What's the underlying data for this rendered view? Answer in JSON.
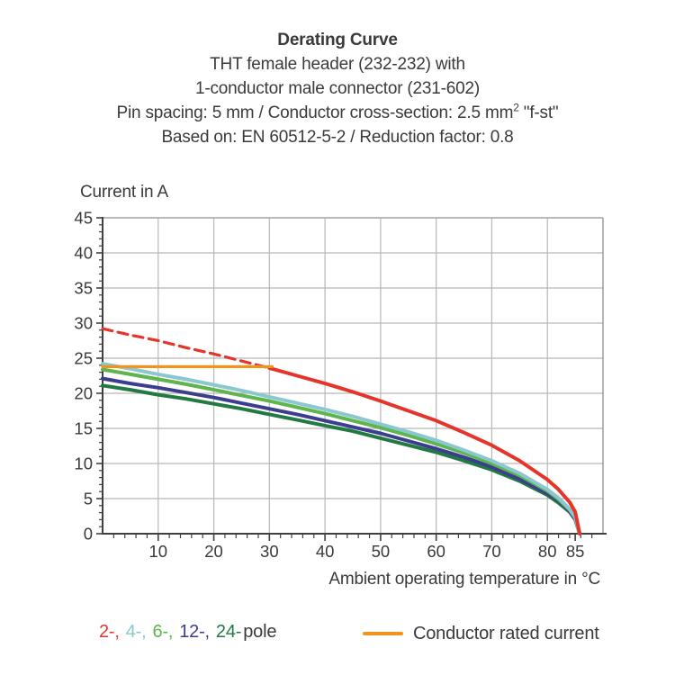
{
  "header": {
    "title": "Derating Curve",
    "subtitle1": "THT female header (232-232) with",
    "subtitle2": "1-conductor male connector (231-602)",
    "subtitle3_pre": "Pin spacing: 5 mm / Conductor cross-section: 2.5 mm",
    "subtitle3_sup": "2",
    "subtitle3_post": " \"f-st\"",
    "subtitle4": "Based on: EN 60512-5-2 / Reduction factor: 0.8"
  },
  "colors": {
    "text": "#3a3a3a",
    "axis": "#404040",
    "grid": "#b7b7b7",
    "plot_border": "#a3a3a3",
    "pole_2": "#e5352b",
    "pole_4": "#8bc7ce",
    "pole_6": "#5eb44d",
    "pole_12": "#3d3d90",
    "pole_24": "#227a43",
    "rated_current": "#f2931e"
  },
  "chart_data": {
    "type": "line",
    "title": "Derating Curve",
    "xlabel": "Ambient operating temperature in °C",
    "ylabel": "Current in A",
    "xlim": [
      0,
      90
    ],
    "ylim": [
      0,
      45
    ],
    "grid": true,
    "x_major_ticks": [
      10,
      20,
      30,
      40,
      50,
      60,
      70,
      80,
      85
    ],
    "y_major_ticks": [
      0,
      5,
      10,
      15,
      20,
      25,
      30,
      35,
      40,
      45
    ],
    "x_minor_step": 2,
    "y_minor_step": 1,
    "x": [
      0,
      5,
      10,
      15,
      20,
      25,
      30,
      35,
      40,
      45,
      50,
      55,
      60,
      65,
      70,
      75,
      80,
      82,
      84,
      85,
      85.8
    ],
    "series": [
      {
        "name": "2-pole",
        "color": "#e5352b",
        "dash_until_index": 6,
        "values": [
          29.2,
          28.3,
          27.5,
          26.5,
          25.6,
          24.6,
          23.6,
          22.5,
          21.4,
          20.2,
          18.9,
          17.5,
          16.1,
          14.4,
          12.6,
          10.4,
          7.7,
          6.3,
          4.5,
          3.1,
          0
        ]
      },
      {
        "name": "4-pole",
        "color": "#8bc7ce",
        "values": [
          24.2,
          23.5,
          22.7,
          22.0,
          21.2,
          20.4,
          19.5,
          18.6,
          17.7,
          16.7,
          15.6,
          14.5,
          13.3,
          11.9,
          10.4,
          8.6,
          6.3,
          5.1,
          3.5,
          2.3,
          0
        ]
      },
      {
        "name": "6-pole",
        "color": "#5eb44d",
        "values": [
          23.4,
          22.7,
          22.0,
          21.3,
          20.5,
          19.7,
          18.9,
          18.0,
          17.1,
          16.1,
          15.1,
          14.0,
          12.8,
          11.5,
          10.0,
          8.3,
          6.1,
          4.9,
          3.4,
          2.3,
          0
        ]
      },
      {
        "name": "12-pole",
        "color": "#3d3d90",
        "values": [
          22.1,
          21.4,
          20.8,
          20.1,
          19.4,
          18.6,
          17.8,
          17.0,
          16.1,
          15.2,
          14.3,
          13.2,
          12.1,
          10.9,
          9.5,
          7.8,
          5.7,
          4.7,
          3.2,
          2.1,
          0
        ]
      },
      {
        "name": "24-pole",
        "color": "#227a43",
        "values": [
          21.1,
          20.5,
          19.8,
          19.2,
          18.5,
          17.8,
          17.0,
          16.2,
          15.4,
          14.6,
          13.6,
          12.6,
          11.6,
          10.4,
          9.1,
          7.5,
          5.5,
          4.4,
          3.1,
          2.0,
          0
        ]
      }
    ],
    "rated_current_line": {
      "name": "Conductor rated current",
      "color": "#f2931e",
      "y": 23.8,
      "x_start": 0,
      "x_end": 30.5
    },
    "legend_position": "bottom"
  },
  "legend": {
    "pole_parts": [
      {
        "text": "2-,",
        "color": "#e5352b",
        "sep": "wide"
      },
      {
        "text": "4-,",
        "color": "#8bc7ce",
        "sep": "wide"
      },
      {
        "text": "6-,",
        "color": "#5eb44d",
        "sep": "wide"
      },
      {
        "text": "12-,",
        "color": "#3d3d90",
        "sep": "wide"
      },
      {
        "text": "24-",
        "color": "#227a43",
        "sep": "tight"
      },
      {
        "text": "pole",
        "color": "#3a3a3a",
        "sep": "none"
      }
    ],
    "rated_current_label": "Conductor rated current",
    "rated_current_color": "#f2931e"
  }
}
